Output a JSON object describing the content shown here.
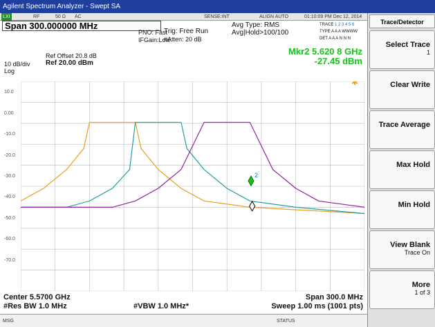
{
  "title_bar": "Agilent Spectrum Analyzer - Swept SA",
  "status_row": {
    "indicator": "LXI",
    "rf": "RF",
    "impedance": "50 Ω",
    "coupling": "AC",
    "sense": "SENSE:INT",
    "align": "ALIGN AUTO",
    "datetime": "01:10:09 PM Dec 12, 2014"
  },
  "trace_info": {
    "trace_label": "TRACE",
    "trace_values": "1 2 3 4 5 6",
    "type_label": "TYPE",
    "type_values": "A A A WWWW",
    "det_label": "DET",
    "det_values": "A A A N N N"
  },
  "span_box": "Span 300.000000 MHz",
  "settings": {
    "pno": "PNO: Fast",
    "ifgain": "IFGain:Low",
    "trig": "Trig: Free Run",
    "atten": "#Atten: 20 dB",
    "avg_type": "Avg Type: RMS",
    "avg_hold": "Avg|Hold>100/100"
  },
  "scale": {
    "ref_offset": "Ref Offset 20.8 dB",
    "per_div": "10 dB/div",
    "ref": "Ref 20.00 dBm",
    "mode": "Log"
  },
  "marker": {
    "line1": "Mkr2 5.620 8 GHz",
    "line2": "-27.45 dBm",
    "marker_label": "2"
  },
  "y_ticks": [
    "10.0",
    "0.00",
    "-10.0",
    "-20.0",
    "-30.0",
    "-40.0",
    "-50.0",
    "-60.0",
    "-70.0"
  ],
  "footer": {
    "center": "Center 5.5700 GHz",
    "res_bw": "#Res BW 1.0 MHz",
    "vbw": "#VBW 1.0 MHz*",
    "span": "Span 300.0 MHz",
    "sweep": "Sweep  1.00 ms (1001 pts)"
  },
  "message_bar": {
    "msg": "MSG",
    "status": "STATUS"
  },
  "softkeys": {
    "title": "Trace/Detector",
    "keys": [
      {
        "label": "Select Trace",
        "sub": "1"
      },
      {
        "label": "Clear Write",
        "sub": ""
      },
      {
        "label": "Trace Average",
        "sub": ""
      },
      {
        "label": "Max Hold",
        "sub": ""
      },
      {
        "label": "Min Hold",
        "sub": ""
      },
      {
        "label": "View Blank",
        "sub": "Trace On"
      },
      {
        "label": "More",
        "sub": "1 of 3"
      }
    ]
  },
  "chart_data": {
    "type": "line",
    "ylabel": "",
    "ylim": [
      -80,
      20
    ],
    "x_unit": "GHz",
    "xlim": [
      5.42,
      5.72
    ],
    "series": [
      {
        "color": "#e8a020",
        "x": [
          5.42,
          5.44,
          5.46,
          5.475,
          5.48,
          5.52,
          5.525,
          5.54,
          5.56,
          5.58,
          5.62,
          5.72
        ],
        "y": [
          -37,
          -31,
          -22,
          -12,
          0.5,
          0.5,
          -12,
          -22,
          -31,
          -37,
          -40,
          -43
        ]
      },
      {
        "color": "#20a0a0",
        "x": [
          5.42,
          5.46,
          5.48,
          5.5,
          5.515,
          5.52,
          5.56,
          5.565,
          5.58,
          5.6,
          5.62,
          5.66,
          5.72
        ],
        "y": [
          -40,
          -40,
          -37,
          -31,
          -22,
          0.5,
          0.5,
          -12,
          -22,
          -31,
          -37,
          -40,
          -43
        ]
      },
      {
        "color": "#9020a0",
        "x": [
          5.42,
          5.5,
          5.52,
          5.54,
          5.56,
          5.58,
          5.62,
          5.64,
          5.66,
          5.68,
          5.72
        ],
        "y": [
          -40,
          -40,
          -37,
          -31,
          -22,
          0.5,
          0.5,
          -22,
          -31,
          -37,
          -40
        ]
      }
    ]
  }
}
